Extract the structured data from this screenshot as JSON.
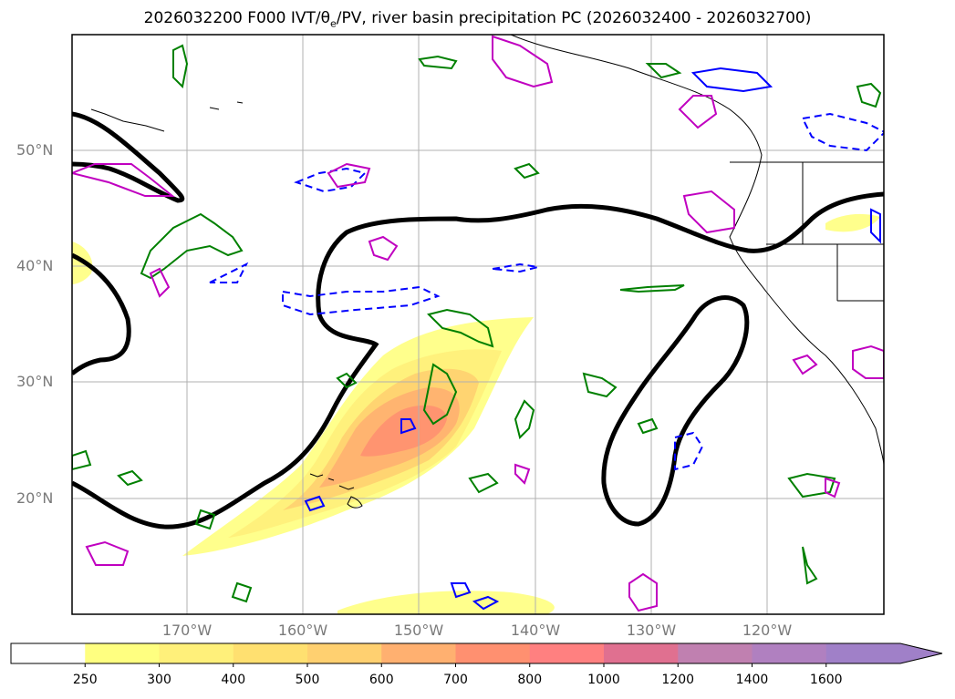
{
  "map": {
    "title_main": "2026032200 F000 IVT/θ",
    "title_sub": "e",
    "title_rest": "/PV, river basin precipitation PC (2026032400 - 2026032700)",
    "lat_labels": [
      "50°N",
      "40°N",
      "30°N",
      "20°N"
    ],
    "lon_labels": [
      "170°W",
      "160°W",
      "150°W",
      "140°W",
      "130°W",
      "120°W"
    ],
    "colors": {
      "pv_contour": "#000000",
      "positive_anomaly": "#008000",
      "negative_anomaly": "#0000ff",
      "magenta_contour": "#c000c0",
      "coastline": "#000000",
      "grid": "#b0b0b0"
    }
  },
  "colorbar": {
    "levels": [
      "250",
      "300",
      "400",
      "500",
      "600",
      "700",
      "800",
      "1000",
      "1200",
      "1400",
      "1600"
    ],
    "colors": [
      "#ffffff",
      "#ffff80",
      "#fff07a",
      "#ffe070",
      "#ffd070",
      "#ffb070",
      "#ff9070",
      "#ff8080",
      "#e07090",
      "#c080b0",
      "#b080c0",
      "#a080c8"
    ],
    "extend": "max"
  }
}
